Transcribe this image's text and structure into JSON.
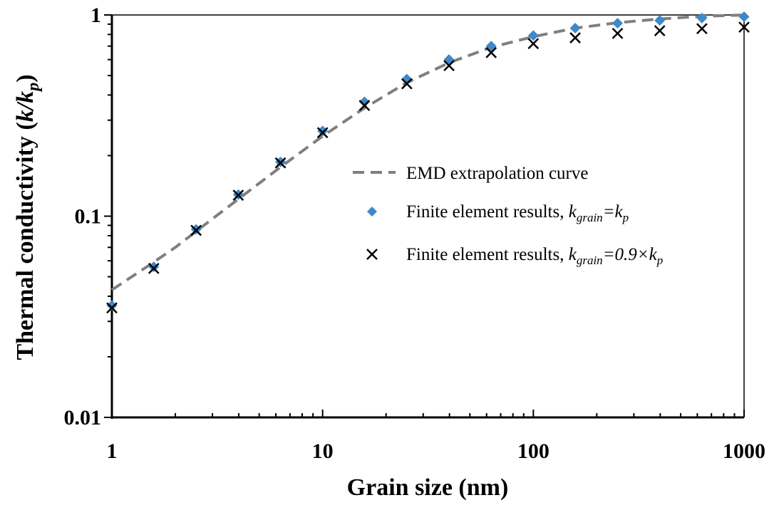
{
  "chart_data": {
    "type": "scatter",
    "x_scale": "log",
    "y_scale": "log",
    "xlim": [
      1,
      1000
    ],
    "ylim": [
      0.01,
      1
    ],
    "grid": false,
    "legend_placement": "center-right",
    "xlabel": "Grain size (nm)",
    "ylabel_parts": [
      "Thermal conductivity (",
      "k/k",
      "p",
      ")"
    ],
    "x_ticks": [
      {
        "value": 1,
        "label": "1"
      },
      {
        "value": 10,
        "label": "10"
      },
      {
        "value": 100,
        "label": "100"
      },
      {
        "value": 1000,
        "label": "1000"
      }
    ],
    "y_ticks": [
      {
        "value": 0.01,
        "label": "0.01"
      },
      {
        "value": 0.1,
        "label": "0.1"
      },
      {
        "value": 1,
        "label": "1"
      }
    ],
    "series": [
      {
        "name": "EMD extrapolation curve",
        "kind": "line",
        "style": "dashed",
        "color": "#7f7f7f",
        "x": [
          1,
          1.5,
          2,
          3,
          4,
          6.3,
          10,
          15.8,
          25,
          40,
          63,
          100,
          158,
          251,
          398,
          631,
          1000
        ],
        "y": [
          0.043,
          0.057,
          0.07,
          0.097,
          0.122,
          0.175,
          0.25,
          0.345,
          0.46,
          0.58,
          0.69,
          0.78,
          0.86,
          0.915,
          0.955,
          0.985,
          1.0
        ]
      },
      {
        "name": "Finite element results, kgrain=kp",
        "legend_parts": [
          "Finite element results, ",
          "k",
          "grain",
          "=k",
          "p"
        ],
        "kind": "marker",
        "marker": "diamond",
        "color": "#3f88c9",
        "x": [
          1,
          1.58,
          2.51,
          3.98,
          6.31,
          10,
          15.8,
          25.1,
          39.8,
          63.1,
          100,
          158,
          251,
          398,
          631,
          1000
        ],
        "y": [
          0.036,
          0.056,
          0.086,
          0.128,
          0.186,
          0.265,
          0.37,
          0.48,
          0.6,
          0.7,
          0.79,
          0.86,
          0.91,
          0.94,
          0.965,
          0.98
        ]
      },
      {
        "name": "Finite element results, kgrain=0.9×kp",
        "legend_parts": [
          "Finite element results, ",
          "k",
          "grain",
          "=0.9×k",
          "p"
        ],
        "kind": "marker",
        "marker": "x",
        "color": "#000000",
        "x": [
          1,
          1.58,
          2.51,
          3.98,
          6.31,
          10,
          15.8,
          25.1,
          39.8,
          63.1,
          100,
          158,
          251,
          398,
          631,
          1000
        ],
        "y": [
          0.035,
          0.055,
          0.085,
          0.127,
          0.184,
          0.26,
          0.355,
          0.455,
          0.56,
          0.65,
          0.72,
          0.77,
          0.81,
          0.835,
          0.855,
          0.87
        ]
      }
    ]
  }
}
